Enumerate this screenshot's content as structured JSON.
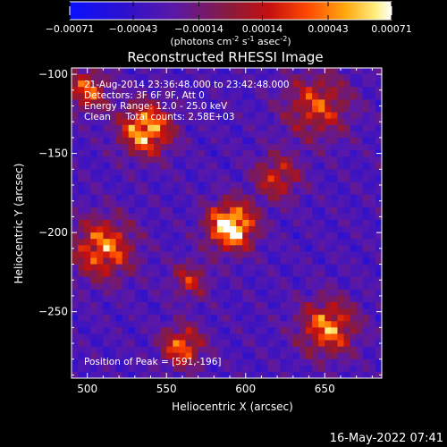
{
  "chart_data": {
    "type": "heatmap",
    "title": "Reconstructed RHESSI Image",
    "xlabel": "Heliocentric X (arcsec)",
    "ylabel": "Heliocentric Y (arcsec)",
    "xlim": [
      490,
      686
    ],
    "ylim": [
      -292,
      -96
    ],
    "xticks": [
      500,
      550,
      600,
      650
    ],
    "yticks": [
      -100,
      -150,
      -200,
      -250
    ],
    "colorbar": {
      "ticks": [
        "-0.00071",
        "-0.00043",
        "-0.00014",
        "0.00014",
        "0.00043",
        "0.00071"
      ],
      "label_main": "(photons cm",
      "label_sup1": "-2",
      "label_mid1": " s",
      "label_sup2": "-1",
      "label_mid2": " asec",
      "label_sup3": "-2",
      "label_end": ")",
      "range": [
        -0.00071,
        0.00071
      ]
    },
    "annotations": [
      "21-Aug-2014 23:36:48.000 to 23:42:48.000",
      "Detectors: 3F 6F 9F, Att 0",
      "Energy Range: 12.0 - 25.0 keV",
      "Clean     Total counts: 2.58E+03"
    ],
    "peak_label": "Position of Peak = [591,-196]",
    "peak": {
      "x": 591,
      "y": -196,
      "value": 0.00071
    },
    "sources": [
      {
        "x": 591,
        "y": -196,
        "amp": 1.0,
        "sigma": 10
      },
      {
        "x": 537,
        "y": -135,
        "amp": 0.8,
        "sigma": 11
      },
      {
        "x": 510,
        "y": -210,
        "amp": 0.65,
        "sigma": 13
      },
      {
        "x": 652,
        "y": -260,
        "amp": 0.65,
        "sigma": 12
      },
      {
        "x": 560,
        "y": -272,
        "amp": 0.6,
        "sigma": 9
      },
      {
        "x": 500,
        "y": -110,
        "amp": 0.55,
        "sigma": 9
      },
      {
        "x": 645,
        "y": -120,
        "amp": 0.5,
        "sigma": 14
      },
      {
        "x": 620,
        "y": -165,
        "amp": 0.45,
        "sigma": 10
      },
      {
        "x": 565,
        "y": -230,
        "amp": 0.4,
        "sigma": 8
      }
    ]
  },
  "footer": {
    "timestamp": "16-May-2022 07:41"
  },
  "colors": {
    "background": "#000000",
    "text": "#ffffff"
  }
}
